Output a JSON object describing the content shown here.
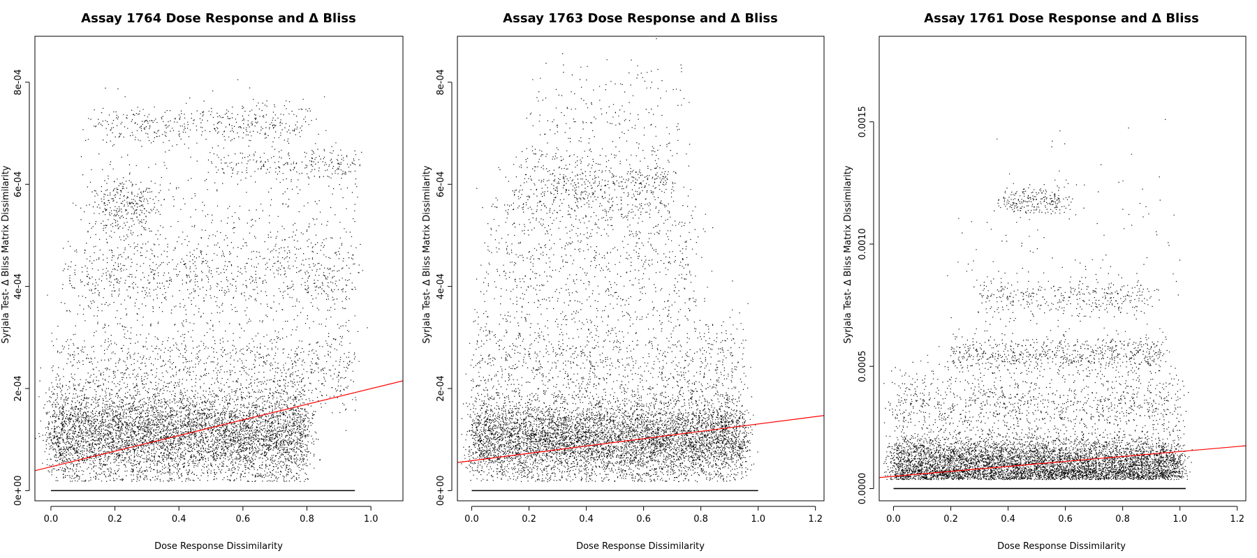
{
  "chart_data": [
    {
      "type": "scatter",
      "title": "Assay 1764 Dose Response and Δ Bliss",
      "xlabel": "Dose Response Dissimilarity",
      "ylabel": "Syrjala Test- Δ Bliss Matrix Dissimilarity",
      "xlim": [
        -0.05,
        1.1
      ],
      "ylim": [
        -2e-05,
        0.00089
      ],
      "x_ticks": [
        0.0,
        0.2,
        0.4,
        0.6,
        0.8,
        1.0
      ],
      "x_tick_labels": [
        "0.0",
        "0.2",
        "0.4",
        "0.6",
        "0.8",
        "1.0"
      ],
      "y_ticks": [
        0,
        0.0002,
        0.0004,
        0.0006,
        0.0008
      ],
      "y_tick_labels": [
        "0e+00",
        "2e-04",
        "4e-04",
        "6e-04",
        "8e-04"
      ],
      "point_color": "#000000",
      "fit_color": "#ff0000",
      "grid": false,
      "fit_line": {
        "x": [
          -0.05,
          1.1
        ],
        "y": [
          3.9e-05,
          0.000215
        ]
      },
      "clusters": [
        {
          "x_range": [
            0.0,
            0.8
          ],
          "y_mean": 0.00011,
          "y_sd": 4.5e-05,
          "weight": 0.62
        },
        {
          "x_range": [
            0.0,
            0.95
          ],
          "y_mean": 0.00024,
          "y_sd": 5e-05,
          "weight": 0.13
        },
        {
          "x_range": [
            0.05,
            0.95
          ],
          "y_mean": 0.00042,
          "y_sd": 4e-05,
          "weight": 0.09
        },
        {
          "x_range": [
            0.15,
            0.32
          ],
          "y_mean": 0.00056,
          "y_sd": 3e-05,
          "weight": 0.03
        },
        {
          "x_range": [
            0.15,
            0.8
          ],
          "y_mean": 0.00072,
          "y_sd": 2e-05,
          "weight": 0.045
        },
        {
          "x_range": [
            0.5,
            0.95
          ],
          "y_mean": 0.00064,
          "y_sd": 1.5e-05,
          "weight": 0.025
        },
        {
          "x_range": [
            0.1,
            0.95
          ],
          "y_mean": 0.0005,
          "y_sd": 0.00012,
          "weight": 0.06
        }
      ],
      "baseline": {
        "x_range": [
          0.0,
          0.95
        ],
        "y": 0.0
      }
    },
    {
      "type": "scatter",
      "title": "Assay 1763 Dose Response and Δ Bliss",
      "xlabel": "Dose Response Dissimilarity",
      "ylabel": "Syrjala Test- Δ Bliss Matrix Dissimilarity",
      "xlim": [
        -0.05,
        1.23
      ],
      "ylim": [
        -2e-05,
        0.00089
      ],
      "x_ticks": [
        0.0,
        0.2,
        0.4,
        0.6,
        0.8,
        1.0,
        1.2
      ],
      "x_tick_labels": [
        "0.0",
        "0.2",
        "0.4",
        "0.6",
        "0.8",
        "1.0",
        "1.2"
      ],
      "y_ticks": [
        0,
        0.0002,
        0.0004,
        0.0006,
        0.0008
      ],
      "y_tick_labels": [
        "0e+00",
        "2e-04",
        "4e-04",
        "6e-04",
        "8e-04"
      ],
      "point_color": "#000000",
      "fit_color": "#ff0000",
      "grid": false,
      "fit_line": {
        "x": [
          -0.05,
          1.23
        ],
        "y": [
          5.5e-05,
          0.000147
        ]
      },
      "clusters": [
        {
          "x_range": [
            0.0,
            0.95
          ],
          "y_mean": 0.0001,
          "y_sd": 4e-05,
          "weight": 0.68
        },
        {
          "x_range": [
            0.0,
            0.95
          ],
          "y_mean": 0.00024,
          "y_sd": 6e-05,
          "weight": 0.14
        },
        {
          "x_range": [
            0.05,
            0.8
          ],
          "y_mean": 0.00045,
          "y_sd": 8e-05,
          "weight": 0.09
        },
        {
          "x_range": [
            0.15,
            0.7
          ],
          "y_mean": 0.0006,
          "y_sd": 4e-05,
          "weight": 0.07
        },
        {
          "x_range": [
            0.2,
            0.75
          ],
          "y_mean": 0.00075,
          "y_sd": 5e-05,
          "weight": 0.02
        }
      ],
      "baseline": {
        "x_range": [
          0.0,
          1.0
        ],
        "y": 0.0
      }
    },
    {
      "type": "scatter",
      "title": "Assay 1761 Dose Response and Δ Bliss",
      "xlabel": "Dose Response Dissimilarity",
      "ylabel": "Syrjala Test- Δ Bliss Matrix Dissimilarity",
      "xlim": [
        -0.05,
        1.23
      ],
      "ylim": [
        -5e-05,
        0.00185
      ],
      "x_ticks": [
        0.0,
        0.2,
        0.4,
        0.6,
        0.8,
        1.0,
        1.2
      ],
      "x_tick_labels": [
        "0.0",
        "0.2",
        "0.4",
        "0.6",
        "0.8",
        "1.0",
        "1.2"
      ],
      "y_ticks": [
        0,
        0.0005,
        0.001,
        0.0015
      ],
      "y_tick_labels": [
        "0.0000",
        "0.0005",
        "0.0010",
        "0.0015"
      ],
      "point_color": "#000000",
      "fit_color": "#ff0000",
      "grid": false,
      "fit_line": {
        "x": [
          -0.05,
          1.23
        ],
        "y": [
          4.5e-05,
          0.000175
        ]
      },
      "clusters": [
        {
          "x_range": [
            0.0,
            1.0
          ],
          "y_mean": 0.0001,
          "y_sd": 6e-05,
          "weight": 0.72
        },
        {
          "x_range": [
            0.0,
            1.0
          ],
          "y_mean": 0.00035,
          "y_sd": 7e-05,
          "weight": 0.12
        },
        {
          "x_range": [
            0.2,
            0.95
          ],
          "y_mean": 0.00055,
          "y_sd": 4e-05,
          "weight": 0.08
        },
        {
          "x_range": [
            0.3,
            0.9
          ],
          "y_mean": 0.00078,
          "y_sd": 4e-05,
          "weight": 0.04
        },
        {
          "x_range": [
            0.38,
            0.62
          ],
          "y_mean": 0.00118,
          "y_sd": 3e-05,
          "weight": 0.025
        },
        {
          "x_range": [
            0.2,
            1.0
          ],
          "y_mean": 0.001,
          "y_sd": 0.0002,
          "weight": 0.015
        }
      ],
      "baseline": {
        "x_range": [
          0.0,
          1.02
        ],
        "y": 0.0
      }
    }
  ]
}
